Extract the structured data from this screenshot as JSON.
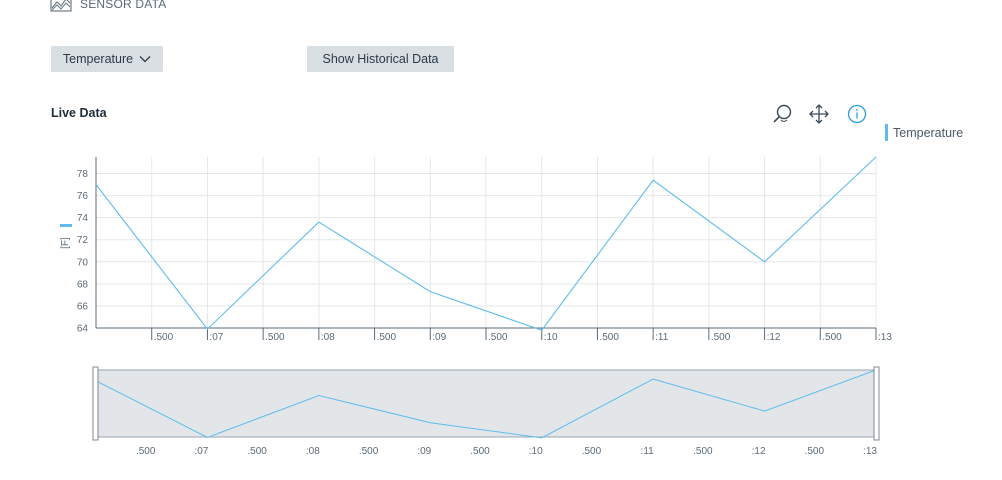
{
  "header": {
    "title": "SENSOR DATA",
    "icon": "chart-area-icon"
  },
  "controls": {
    "dropdown_label": "Temperature",
    "history_button_label": "Show Historical Data"
  },
  "section_title": "Live Data",
  "toolbar": {
    "zoom_icon": "magnifier-icon",
    "pan_icon": "move-icon",
    "info_icon": "info-icon"
  },
  "colors": {
    "series": "#5fbcec",
    "button_bg": "#d9dee3",
    "navigator_fill": "#e3e6e9",
    "info": "#2b9fe0"
  },
  "chart_data": {
    "type": "line",
    "legend": "top-right",
    "grid": true,
    "ylabel": "[F]",
    "ylim": [
      64,
      79.5
    ],
    "yticks": [
      "64",
      "66",
      "68",
      "70",
      "72",
      "74",
      "76",
      "78"
    ],
    "xticks": [
      ".500",
      ":07",
      ".500",
      ":08",
      ".500",
      ":09",
      ".500",
      ":10",
      ".500",
      ":11",
      ".500",
      ":12",
      ".500",
      ":13"
    ],
    "series": [
      {
        "name": "Temperature",
        "x": [
          0,
          1,
          2,
          3,
          4,
          5,
          6,
          7
        ],
        "values": [
          77,
          63.9,
          73.6,
          67.3,
          63.8,
          77.4,
          70,
          79.5
        ]
      }
    ],
    "navigator": {
      "xticks": [
        ".500",
        ":07",
        ".500",
        ":08",
        ".500",
        ":09",
        ".500",
        ":10",
        ".500",
        ":11",
        ".500",
        ":12",
        ".500",
        ":13"
      ]
    }
  }
}
